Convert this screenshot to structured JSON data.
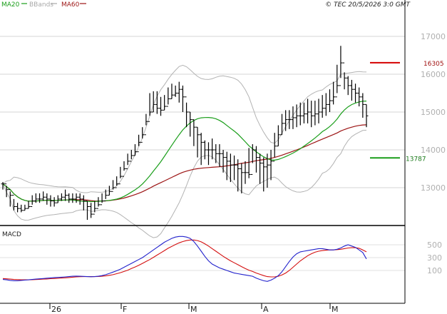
{
  "header": {
    "legend": [
      {
        "label": "MA20",
        "color": "#1a9e1a"
      },
      {
        "label": "BBands",
        "color": "#a8a8a8"
      },
      {
        "label": "MA60",
        "color": "#9c1414"
      }
    ],
    "copyright": "© TEC 20/5/2026 3:0 GMT"
  },
  "chart_data": [
    {
      "type": "ohlc",
      "x_tick_labels": [
        "26",
        "F",
        "M",
        "A",
        "M"
      ],
      "y_tick_labels": [
        "17000",
        "16000",
        "15000",
        "14000",
        "13000"
      ],
      "ylim": [
        12150,
        17750
      ],
      "grid": true,
      "colors": {
        "ohlc": "#000000",
        "ma20": "#1a9e1a",
        "bbands": "#a8a8a8",
        "ma60": "#9c1414",
        "resistance": "#d40000",
        "support": "#1a9e1a"
      },
      "levels": [
        {
          "name": "resistance",
          "value": 16305,
          "label": "16305"
        },
        {
          "name": "support",
          "value": 13787,
          "label": "13787"
        }
      ],
      "close": [
        13100,
        12950,
        12800,
        12500,
        12450,
        12400,
        12450,
        12500,
        12650,
        12700,
        12700,
        12750,
        12700,
        12650,
        12600,
        12700,
        12750,
        12800,
        12700,
        12700,
        12750,
        12700,
        12650,
        12500,
        12300,
        12450,
        12550,
        12650,
        12800,
        12900,
        13000,
        13100,
        13300,
        13500,
        13700,
        13850,
        13950,
        14200,
        14400,
        14750,
        15000,
        15200,
        15100,
        15050,
        15150,
        15350,
        15450,
        15500,
        15600,
        15400,
        15000,
        14800,
        14600,
        14400,
        14200,
        14000,
        14000,
        14000,
        13900,
        13900,
        13800,
        13700,
        13600,
        13600,
        13500,
        13400,
        13400,
        13350,
        14000,
        13800,
        13650,
        13550,
        13600,
        13700,
        14100,
        14400,
        14700,
        14800,
        14800,
        14850,
        14900,
        14900,
        14950,
        15000,
        14900,
        14950,
        15000,
        15100,
        15200,
        15300,
        15400,
        15700,
        16300,
        15900,
        15700,
        15600,
        15500,
        15400,
        15200,
        14900
      ],
      "high": [
        13150,
        13050,
        12900,
        12700,
        12600,
        12550,
        12550,
        12650,
        12800,
        12850,
        12850,
        12900,
        12850,
        12800,
        12750,
        12800,
        12850,
        12950,
        12850,
        12850,
        12850,
        12850,
        12800,
        12650,
        12600,
        12650,
        12750,
        12850,
        12950,
        13050,
        13200,
        13300,
        13550,
        13700,
        13900,
        14000,
        14150,
        14400,
        14600,
        14950,
        15500,
        15550,
        15550,
        15400,
        15450,
        15650,
        15750,
        15700,
        15800,
        15700,
        15250,
        15000,
        14800,
        14600,
        14450,
        14250,
        14200,
        14300,
        14150,
        14150,
        14000,
        13950,
        13900,
        13850,
        13750,
        13650,
        13700,
        14050,
        14150,
        14100,
        13900,
        13800,
        13900,
        14000,
        14450,
        14650,
        14950,
        15050,
        15050,
        15150,
        15200,
        15250,
        15250,
        15350,
        15300,
        15300,
        15350,
        15450,
        15500,
        15600,
        15800,
        16250,
        16750,
        16050,
        15950,
        15850,
        15750,
        15650,
        15500,
        15200
      ],
      "low": [
        12950,
        12750,
        12500,
        12400,
        12350,
        12350,
        12400,
        12450,
        12550,
        12600,
        12600,
        12650,
        12550,
        12500,
        12500,
        12600,
        12650,
        12650,
        12600,
        12600,
        12600,
        12550,
        12400,
        12150,
        12200,
        12350,
        12500,
        12600,
        12700,
        12800,
        12950,
        13050,
        13250,
        13450,
        13600,
        13750,
        13850,
        14100,
        14300,
        14650,
        14900,
        15000,
        14950,
        14900,
        15050,
        15200,
        15350,
        15400,
        15250,
        15000,
        14600,
        14350,
        14100,
        13800,
        13600,
        13750,
        13600,
        13750,
        13650,
        13550,
        13400,
        13200,
        13150,
        13200,
        12900,
        12850,
        13100,
        13250,
        13650,
        13400,
        13100,
        12900,
        13000,
        13200,
        13800,
        14100,
        14400,
        14500,
        14550,
        14550,
        14600,
        14650,
        14700,
        14700,
        14600,
        14650,
        14700,
        14850,
        14900,
        15000,
        15200,
        15500,
        15900,
        15600,
        15450,
        15300,
        15250,
        15150,
        14850,
        14600
      ]
    },
    {
      "type": "line",
      "title": "MACD",
      "y_tick_labels": [
        "500",
        "300",
        "100"
      ],
      "ylim": [
        -100,
        720
      ],
      "series": [
        {
          "name": "MACD",
          "color": "#2222cc",
          "values": [
            -40,
            -45,
            -55,
            -60,
            -60,
            -55,
            -50,
            -45,
            -40,
            -35,
            -30,
            -25,
            -20,
            -15,
            -10,
            -8,
            -5,
            0,
            5,
            10,
            12,
            10,
            8,
            5,
            2,
            5,
            10,
            20,
            35,
            55,
            75,
            95,
            120,
            150,
            180,
            210,
            240,
            270,
            300,
            340,
            380,
            420,
            460,
            500,
            540,
            570,
            600,
            620,
            630,
            630,
            620,
            600,
            550,
            480,
            400,
            320,
            250,
            200,
            170,
            140,
            120,
            100,
            80,
            60,
            50,
            40,
            30,
            20,
            10,
            -20,
            -40,
            -60,
            -70,
            -50,
            -20,
            20,
            80,
            160,
            240,
            310,
            360,
            390,
            400,
            410,
            420,
            430,
            440,
            440,
            430,
            420,
            420,
            430,
            450,
            480,
            500,
            480,
            460,
            420,
            380,
            280
          ]
        },
        {
          "name": "Signal",
          "color": "#d41010",
          "values": [
            -25,
            -30,
            -35,
            -40,
            -42,
            -45,
            -45,
            -45,
            -43,
            -41,
            -38,
            -35,
            -32,
            -28,
            -25,
            -22,
            -18,
            -14,
            -10,
            -5,
            0,
            3,
            5,
            5,
            5,
            5,
            7,
            10,
            15,
            25,
            35,
            50,
            65,
            85,
            105,
            130,
            155,
            180,
            210,
            240,
            270,
            305,
            340,
            375,
            410,
            445,
            475,
            505,
            530,
            550,
            565,
            575,
            575,
            565,
            545,
            515,
            480,
            440,
            400,
            360,
            320,
            285,
            250,
            220,
            190,
            160,
            130,
            105,
            85,
            60,
            40,
            20,
            5,
            0,
            0,
            10,
            30,
            60,
            100,
            150,
            200,
            250,
            290,
            330,
            360,
            385,
            400,
            410,
            415,
            420,
            420,
            425,
            430,
            440,
            450,
            455,
            455,
            445,
            420,
            390
          ]
        }
      ]
    }
  ]
}
